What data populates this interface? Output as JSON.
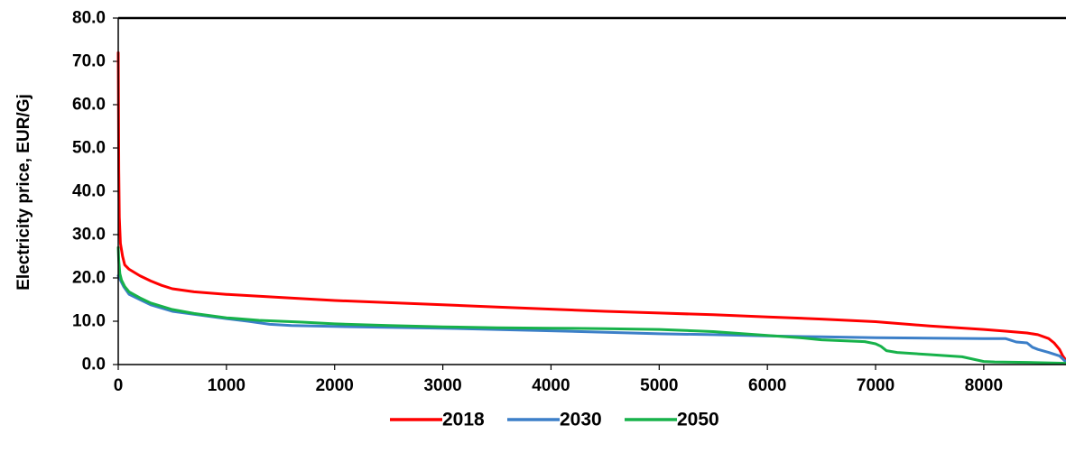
{
  "chart_data": {
    "type": "line",
    "title": "",
    "xlabel": "",
    "ylabel": "Electricity price, EUR/Gj",
    "xlim": [
      0,
      8760
    ],
    "ylim": [
      0,
      80
    ],
    "x_ticks": [
      0,
      1000,
      2000,
      3000,
      4000,
      5000,
      6000,
      7000,
      8000
    ],
    "x_tick_labels": [
      "0",
      "1000",
      "2000",
      "3000",
      "4000",
      "5000",
      "6000",
      "7000",
      "8000"
    ],
    "y_ticks": [
      0,
      10,
      20,
      30,
      40,
      50,
      60,
      70,
      80
    ],
    "y_tick_labels": [
      "0.0",
      "10.0",
      "20.0",
      "30.0",
      "40.0",
      "50.0",
      "60.0",
      "70.0",
      "80.0"
    ],
    "grid": false,
    "legend_position": "bottom",
    "series": [
      {
        "name": "2018",
        "color": "#ff0000",
        "x": [
          0,
          5,
          10,
          20,
          40,
          60,
          100,
          200,
          300,
          400,
          500,
          700,
          1000,
          1500,
          2000,
          2500,
          3000,
          3500,
          4000,
          4500,
          5000,
          5500,
          6000,
          6500,
          7000,
          7500,
          8000,
          8200,
          8400,
          8500,
          8600,
          8650,
          8700,
          8730,
          8760
        ],
        "y": [
          72,
          45,
          34,
          28,
          25,
          23,
          22,
          20.5,
          19.3,
          18.3,
          17.5,
          16.8,
          16.2,
          15.5,
          14.8,
          14.3,
          13.8,
          13.3,
          12.8,
          12.3,
          11.9,
          11.5,
          11.0,
          10.5,
          9.9,
          8.9,
          8.1,
          7.7,
          7.3,
          6.9,
          6.0,
          5.0,
          3.5,
          2.0,
          1.0
        ]
      },
      {
        "name": "2030",
        "color": "#3c7fc8",
        "x": [
          0,
          20,
          50,
          100,
          200,
          300,
          500,
          700,
          1000,
          1200,
          1400,
          1600,
          2000,
          3000,
          4000,
          5000,
          5500,
          6000,
          6500,
          7000,
          7500,
          8000,
          8200,
          8250,
          8300,
          8400,
          8450,
          8500,
          8600,
          8700,
          8760
        ],
        "y": [
          20.5,
          19.5,
          18,
          16.2,
          15,
          13.8,
          12.3,
          11.6,
          10.6,
          10,
          9.3,
          9.0,
          8.8,
          8.4,
          7.8,
          7.1,
          6.9,
          6.6,
          6.4,
          6.2,
          6.1,
          6.0,
          6.0,
          5.6,
          5.2,
          5.0,
          4.0,
          3.5,
          2.8,
          2.0,
          0.6
        ]
      },
      {
        "name": "2050",
        "color": "#17b24a",
        "x": [
          0,
          5,
          15,
          30,
          60,
          100,
          200,
          300,
          500,
          700,
          1000,
          1300,
          1500,
          1700,
          2000,
          2500,
          3000,
          3500,
          4000,
          4500,
          5000,
          5500,
          6000,
          6300,
          6500,
          6700,
          6900,
          7000,
          7050,
          7100,
          7200,
          7500,
          7800,
          8000,
          8100,
          8400,
          8760
        ],
        "y": [
          27,
          24,
          21,
          19.5,
          18,
          16.8,
          15.4,
          14.2,
          12.7,
          11.8,
          10.8,
          10.2,
          10,
          9.8,
          9.4,
          9.0,
          8.7,
          8.5,
          8.4,
          8.3,
          8.1,
          7.6,
          6.7,
          6.2,
          5.7,
          5.5,
          5.3,
          4.8,
          4.2,
          3.2,
          2.8,
          2.3,
          1.8,
          0.7,
          0.6,
          0.5,
          0.3
        ]
      }
    ]
  }
}
